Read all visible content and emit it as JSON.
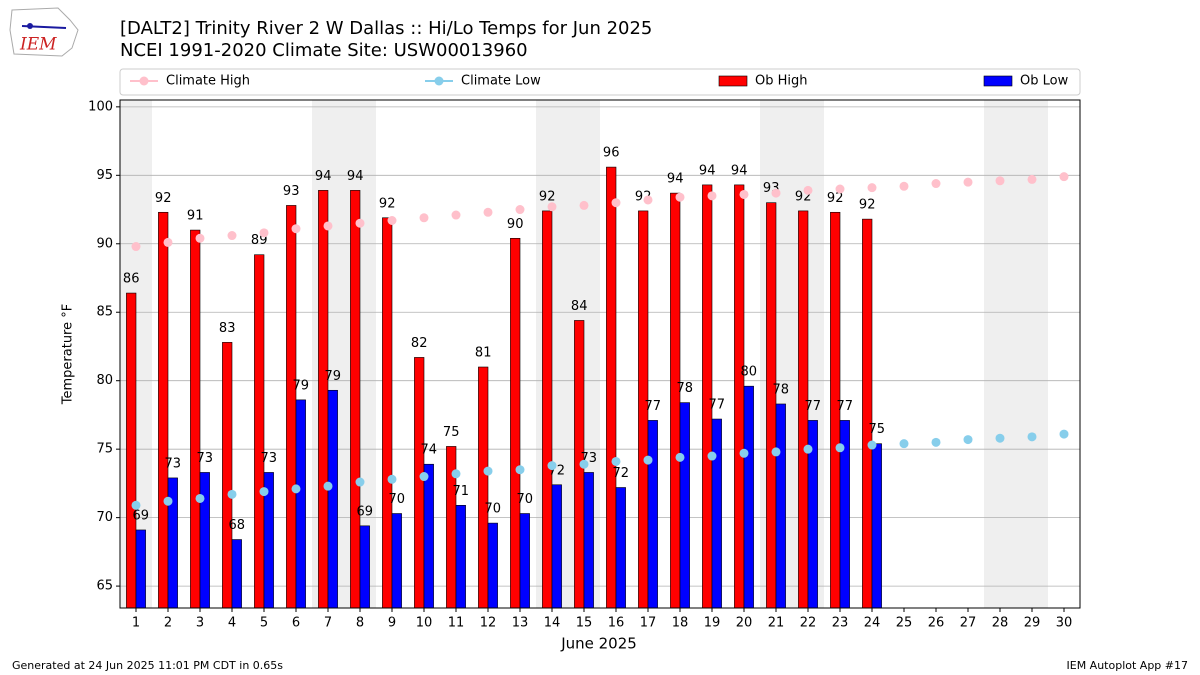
{
  "chart_data": {
    "type": "bar_line",
    "logo_text": "IEM",
    "title": "[DALT2] Trinity River 2 W Dallas :: Hi/Lo Temps for Jun 2025",
    "subtitle": "NCEI 1991-2020 Climate Site: USW00013960",
    "xlabel": "June 2025",
    "ylabel": "Temperature °F",
    "footer_left": "Generated at 24 Jun 2025 11:01 PM CDT in 0.65s",
    "footer_right": "IEM Autoplot App #17",
    "x": [
      1,
      2,
      3,
      4,
      5,
      6,
      7,
      8,
      9,
      10,
      11,
      12,
      13,
      14,
      15,
      16,
      17,
      18,
      19,
      20,
      21,
      22,
      23,
      24,
      25,
      26,
      27,
      28,
      29,
      30
    ],
    "xlim": [
      0.5,
      30.5
    ],
    "xticks": [
      1,
      2,
      3,
      4,
      5,
      6,
      7,
      8,
      9,
      10,
      11,
      12,
      13,
      14,
      15,
      16,
      17,
      18,
      19,
      20,
      21,
      22,
      23,
      24,
      25,
      26,
      27,
      28,
      29,
      30
    ],
    "ylim": [
      63.4,
      100.5
    ],
    "yticks": [
      65,
      70,
      75,
      80,
      85,
      90,
      95,
      100
    ],
    "grid": true,
    "shaded_days": [
      1,
      7,
      8,
      14,
      15,
      21,
      22,
      28,
      29
    ],
    "shade_color": "#efefef",
    "series": [
      {
        "name": "Climate High",
        "kind": "line",
        "color": "#ffc0cb",
        "values": [
          89.8,
          90.1,
          90.4,
          90.6,
          90.8,
          91.1,
          91.3,
          91.5,
          91.7,
          91.9,
          92.1,
          92.3,
          92.5,
          92.7,
          92.8,
          93.0,
          93.2,
          93.4,
          93.5,
          93.6,
          93.7,
          93.9,
          94.0,
          94.1,
          94.2,
          94.4,
          94.5,
          94.6,
          94.7,
          94.9
        ]
      },
      {
        "name": "Climate Low",
        "kind": "line",
        "color": "#87ceeb",
        "values": [
          70.9,
          71.2,
          71.4,
          71.7,
          71.9,
          72.1,
          72.3,
          72.6,
          72.8,
          73.0,
          73.2,
          73.4,
          73.5,
          73.8,
          73.9,
          74.1,
          74.2,
          74.4,
          74.5,
          74.7,
          74.8,
          75.0,
          75.1,
          75.3,
          75.4,
          75.5,
          75.7,
          75.8,
          75.9,
          76.1
        ]
      },
      {
        "name": "Ob High",
        "kind": "bar",
        "color": "#ff0000",
        "offset": -1,
        "values": [
          86.4,
          92.3,
          91.0,
          82.8,
          89.2,
          92.8,
          93.9,
          93.9,
          91.9,
          81.7,
          75.2,
          81.0,
          90.4,
          92.4,
          84.4,
          95.6,
          92.4,
          93.7,
          94.3,
          94.3,
          93.0,
          92.4,
          92.3,
          91.8,
          null,
          null,
          null,
          null,
          null,
          null
        ],
        "value_labels": [
          "86",
          "92",
          "91",
          "83",
          "89",
          "93",
          "94",
          "94",
          "92",
          "82",
          "75",
          "81",
          "90",
          "92",
          "84",
          "96",
          "92",
          "94",
          "94",
          "94",
          "93",
          "92",
          "92",
          "92",
          null,
          null,
          null,
          null,
          null,
          null
        ]
      },
      {
        "name": "Ob Low",
        "kind": "bar",
        "color": "#0000ff",
        "offset": 0,
        "values": [
          69.1,
          72.9,
          73.3,
          68.4,
          73.3,
          78.6,
          79.3,
          69.4,
          70.3,
          73.9,
          70.9,
          69.6,
          70.3,
          72.4,
          73.3,
          72.2,
          77.1,
          78.4,
          77.2,
          79.6,
          78.3,
          77.1,
          77.1,
          75.4,
          null,
          null,
          null,
          null,
          null,
          null
        ],
        "value_labels": [
          "69",
          "73",
          "73",
          "68",
          "73",
          "79",
          "79",
          "69",
          "70",
          "74",
          "71",
          "70",
          "70",
          "72",
          "73",
          "72",
          "77",
          "78",
          "77",
          "80",
          "78",
          "77",
          "77",
          "75",
          null,
          null,
          null,
          null,
          null,
          null
        ]
      }
    ]
  }
}
